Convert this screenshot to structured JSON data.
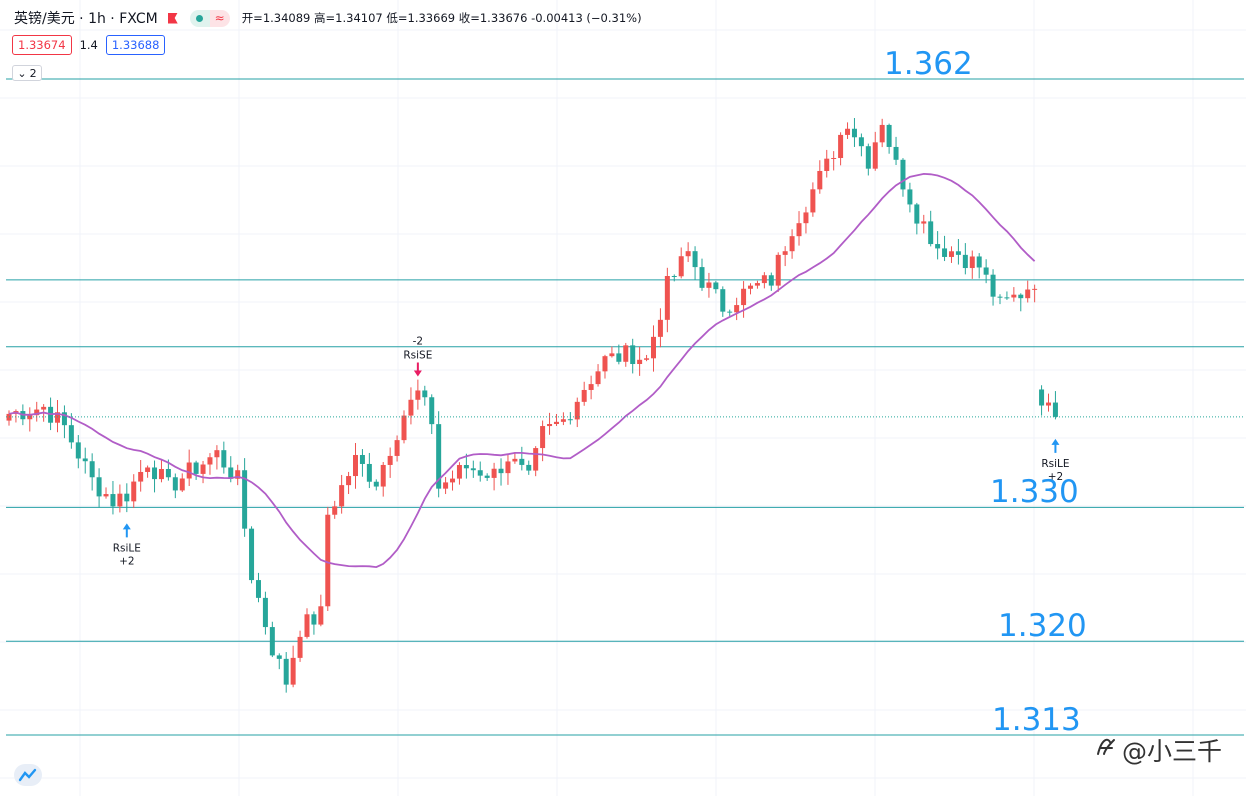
{
  "header": {
    "symbol": "英镑/美元 · 1h · FXCM",
    "ohlc_text": "开=1.34089 高=1.34107 低=1.33669 收=1.33676 -0.00413 (−0.31%)",
    "bid": "1.33674",
    "spread": "1.4",
    "ask": "1.33688",
    "collapse_count": "2",
    "colors": {
      "up": "#ef5350",
      "down": "#26a69a",
      "accent": "#2196f3",
      "ma": "#b15dc7"
    }
  },
  "watermark": "@小三千",
  "chart_data": {
    "type": "candlestick",
    "y_axis": {
      "min": 1.3125,
      "max": 1.365,
      "visible": false
    },
    "x_axis": {
      "visible": false,
      "bar_count": 152
    },
    "horizontal_lines": [
      {
        "value": 1.362,
        "label": "1.362"
      },
      {
        "value": 1.347,
        "label": ""
      },
      {
        "value": 1.342,
        "label": ""
      },
      {
        "value": 1.33,
        "label": "1.330"
      },
      {
        "value": 1.32,
        "label": "1.320"
      },
      {
        "value": 1.313,
        "label": "1.313"
      }
    ],
    "current_price": 1.33676,
    "signals": [
      {
        "bar": 17,
        "type": "long",
        "label": "RsiLE",
        "qty": "+2"
      },
      {
        "bar": 59,
        "type": "short",
        "label": "RsiSE",
        "qty": "-2"
      },
      {
        "bar": 151,
        "type": "long",
        "label": "RsiLE",
        "qty": "+2"
      }
    ],
    "waypoints": [
      [
        0,
        1.337
      ],
      [
        5,
        1.3375
      ],
      [
        8,
        1.336
      ],
      [
        12,
        1.332
      ],
      [
        15,
        1.3305
      ],
      [
        17,
        1.331
      ],
      [
        20,
        1.3335
      ],
      [
        23,
        1.3315
      ],
      [
        27,
        1.333
      ],
      [
        30,
        1.334
      ],
      [
        33,
        1.332
      ],
      [
        35,
        1.325
      ],
      [
        38,
        1.3195
      ],
      [
        40,
        1.317
      ],
      [
        42,
        1.321
      ],
      [
        45,
        1.322
      ],
      [
        46,
        1.3295
      ],
      [
        50,
        1.3335
      ],
      [
        53,
        1.332
      ],
      [
        57,
        1.337
      ],
      [
        59,
        1.3385
      ],
      [
        61,
        1.3365
      ],
      [
        62,
        1.3315
      ],
      [
        66,
        1.333
      ],
      [
        70,
        1.3325
      ],
      [
        72,
        1.3338
      ],
      [
        75,
        1.332
      ],
      [
        77,
        1.3355
      ],
      [
        80,
        1.3365
      ],
      [
        83,
        1.339
      ],
      [
        86,
        1.341
      ],
      [
        90,
        1.3415
      ],
      [
        92,
        1.341
      ],
      [
        95,
        1.3465
      ],
      [
        98,
        1.349
      ],
      [
        100,
        1.347
      ],
      [
        103,
        1.345
      ],
      [
        106,
        1.346
      ],
      [
        110,
        1.347
      ],
      [
        113,
        1.351
      ],
      [
        118,
        1.3555
      ],
      [
        121,
        1.359
      ],
      [
        124,
        1.356
      ],
      [
        126,
        1.359
      ],
      [
        128,
        1.3555
      ],
      [
        131,
        1.352
      ],
      [
        134,
        1.3495
      ],
      [
        137,
        1.349
      ],
      [
        140,
        1.348
      ],
      [
        143,
        1.345
      ],
      [
        146,
        1.346
      ],
      [
        148,
        1.347
      ],
      [
        149,
        1.337
      ],
      [
        150,
        1.3385
      ],
      [
        151,
        1.3368
      ]
    ],
    "ma_period": 20
  }
}
